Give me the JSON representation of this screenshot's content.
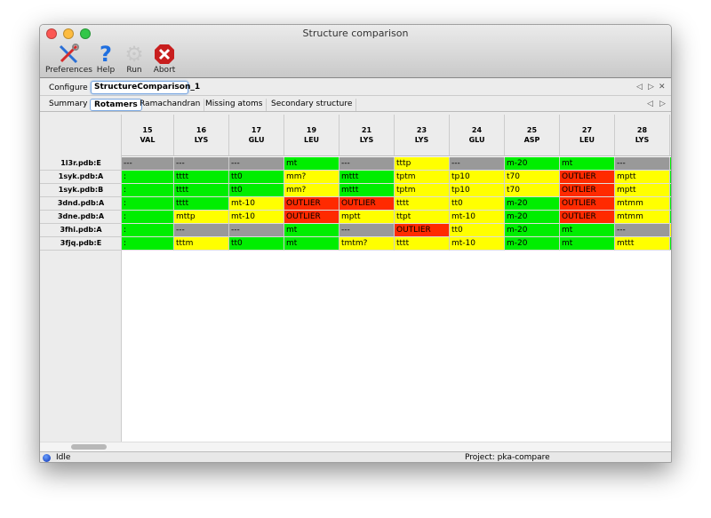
{
  "window": {
    "title": "Structure comparison"
  },
  "toolbar": {
    "preferences": "Preferences",
    "help": "Help",
    "run": "Run",
    "abort": "Abort"
  },
  "configure": {
    "label": "Configure",
    "value": "StructureComparison_1"
  },
  "tabs": [
    {
      "label": "Summary"
    },
    {
      "label": "Rotamers",
      "selected": true
    },
    {
      "label": "Ramachandran"
    },
    {
      "label": "Missing atoms"
    },
    {
      "label": "Secondary structure"
    }
  ],
  "colors": {
    "green": "#00ee00",
    "yellow": "#ffff00",
    "red": "#ff2a00",
    "gray": "#999999"
  },
  "table": {
    "columns": [
      {
        "num": "15",
        "res": "VAL"
      },
      {
        "num": "16",
        "res": "LYS"
      },
      {
        "num": "17",
        "res": "GLU"
      },
      {
        "num": "19",
        "res": "LEU"
      },
      {
        "num": "21",
        "res": "LYS"
      },
      {
        "num": "23",
        "res": "LYS"
      },
      {
        "num": "24",
        "res": "GLU"
      },
      {
        "num": "25",
        "res": "ASP"
      },
      {
        "num": "27",
        "res": "LEU"
      },
      {
        "num": "28",
        "res": "LYS"
      }
    ],
    "rows": [
      {
        "label": "1l3r.pdb:E",
        "cells": [
          [
            "---",
            "gray"
          ],
          [
            "---",
            "gray"
          ],
          [
            "---",
            "gray"
          ],
          [
            "mt",
            "green"
          ],
          [
            "---",
            "gray"
          ],
          [
            "tttp",
            "yellow"
          ],
          [
            "---",
            "gray"
          ],
          [
            "m-20",
            "green"
          ],
          [
            "mt",
            "green"
          ],
          [
            "---",
            "gray"
          ]
        ],
        "partial": "green"
      },
      {
        "label": "1syk.pdb:A",
        "cells": [
          [
            ":",
            "green"
          ],
          [
            "tttt",
            "green"
          ],
          [
            "tt0",
            "green"
          ],
          [
            "mm?",
            "yellow"
          ],
          [
            "mttt",
            "green"
          ],
          [
            "tptm",
            "yellow"
          ],
          [
            "tp10",
            "yellow"
          ],
          [
            "t70",
            "yellow"
          ],
          [
            "OUTLIER",
            "red"
          ],
          [
            "mptt",
            "yellow"
          ]
        ],
        "partial": "green"
      },
      {
        "label": "1syk.pdb:B",
        "cells": [
          [
            ":",
            "green"
          ],
          [
            "tttt",
            "green"
          ],
          [
            "tt0",
            "green"
          ],
          [
            "mm?",
            "yellow"
          ],
          [
            "mttt",
            "green"
          ],
          [
            "tptm",
            "yellow"
          ],
          [
            "tp10",
            "yellow"
          ],
          [
            "t70",
            "yellow"
          ],
          [
            "OUTLIER",
            "red"
          ],
          [
            "mptt",
            "yellow"
          ]
        ],
        "partial": "green"
      },
      {
        "label": "3dnd.pdb:A",
        "cells": [
          [
            ":",
            "green"
          ],
          [
            "tttt",
            "green"
          ],
          [
            "mt-10",
            "yellow"
          ],
          [
            "OUTLIER",
            "red"
          ],
          [
            "OUTLIER",
            "red"
          ],
          [
            "tttt",
            "yellow"
          ],
          [
            "tt0",
            "yellow"
          ],
          [
            "m-20",
            "green"
          ],
          [
            "OUTLIER",
            "red"
          ],
          [
            "mtmm",
            "yellow"
          ]
        ],
        "partial": "green"
      },
      {
        "label": "3dne.pdb:A",
        "cells": [
          [
            ":",
            "green"
          ],
          [
            "mttp",
            "yellow"
          ],
          [
            "mt-10",
            "yellow"
          ],
          [
            "OUTLIER",
            "red"
          ],
          [
            "mptt",
            "yellow"
          ],
          [
            "ttpt",
            "yellow"
          ],
          [
            "mt-10",
            "yellow"
          ],
          [
            "m-20",
            "green"
          ],
          [
            "OUTLIER",
            "red"
          ],
          [
            "mtmm",
            "yellow"
          ]
        ],
        "partial": "green"
      },
      {
        "label": "3fhi.pdb:A",
        "cells": [
          [
            ":",
            "green"
          ],
          [
            "---",
            "gray"
          ],
          [
            "---",
            "gray"
          ],
          [
            "mt",
            "green"
          ],
          [
            "---",
            "gray"
          ],
          [
            "OUTLIER",
            "red"
          ],
          [
            "tt0",
            "yellow"
          ],
          [
            "m-20",
            "green"
          ],
          [
            "mt",
            "green"
          ],
          [
            "---",
            "gray"
          ]
        ],
        "partial": "yellow"
      },
      {
        "label": "3fjq.pdb:E",
        "cells": [
          [
            ":",
            "green"
          ],
          [
            "tttm",
            "yellow"
          ],
          [
            "tt0",
            "green"
          ],
          [
            "mt",
            "green"
          ],
          [
            "tmtm?",
            "yellow"
          ],
          [
            "tttt",
            "yellow"
          ],
          [
            "mt-10",
            "yellow"
          ],
          [
            "m-20",
            "green"
          ],
          [
            "mt",
            "green"
          ],
          [
            "mttt",
            "yellow"
          ]
        ],
        "partial": "green"
      }
    ]
  },
  "status": {
    "state": "Idle",
    "project": "Project: pka-compare"
  }
}
